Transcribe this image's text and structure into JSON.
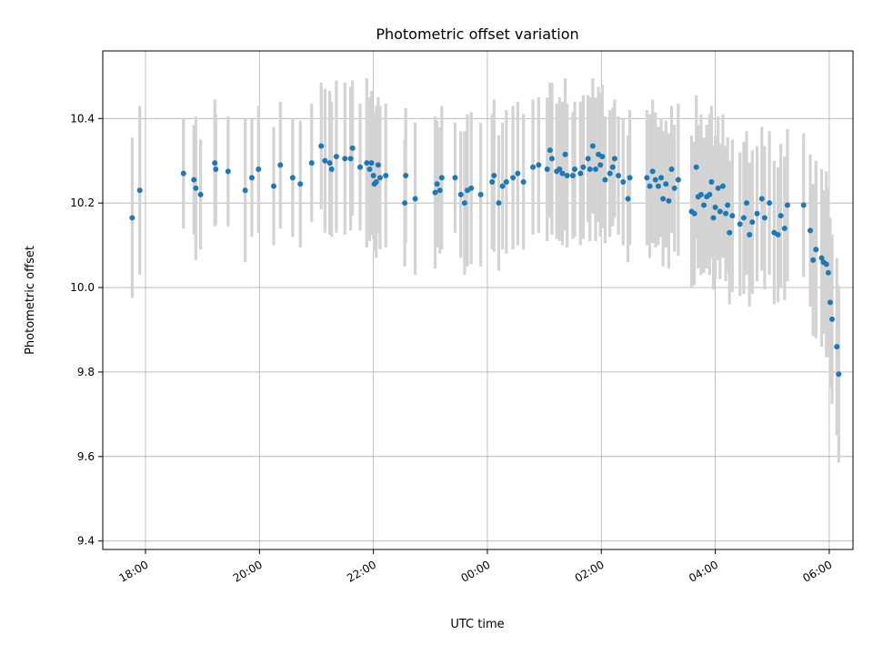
{
  "chart_data": {
    "type": "scatter",
    "title": "Photometric offset variation",
    "xlabel": "UTC time",
    "ylabel": "Photometric offset",
    "x_unit": "UTC time",
    "x_start_date": "",
    "xlim": [
      "17:15",
      "30:25"
    ],
    "ylim": [
      9.38,
      10.56
    ],
    "xticks": [
      {
        "hour": 18,
        "label": "18:00"
      },
      {
        "hour": 20,
        "label": "20:00"
      },
      {
        "hour": 22,
        "label": "22:00"
      },
      {
        "hour": 24,
        "label": "00:00"
      },
      {
        "hour": 26,
        "label": "02:00"
      },
      {
        "hour": 28,
        "label": "04:00"
      },
      {
        "hour": 30,
        "label": "06:00"
      }
    ],
    "yticks": [
      9.4,
      9.6,
      9.8,
      10.0,
      10.2,
      10.4
    ],
    "grid": true,
    "marker_color": "#1f77b4",
    "errorbar_color": "#d3d3d3",
    "series": [
      {
        "name": "",
        "points": [
          [
            "17:46",
            10.165,
            0.19
          ],
          [
            "17:54",
            10.23,
            0.2
          ],
          [
            "18:40",
            10.27,
            0.13
          ],
          [
            "18:51",
            10.255,
            0.13
          ],
          [
            "18:53",
            10.235,
            0.17
          ],
          [
            "18:58",
            10.22,
            0.13
          ],
          [
            "19:13",
            10.295,
            0.15
          ],
          [
            "19:14",
            10.28,
            0.13
          ],
          [
            "19:27",
            10.275,
            0.13
          ],
          [
            "19:45",
            10.23,
            0.17
          ],
          [
            "19:52",
            10.26,
            0.14
          ],
          [
            "19:59",
            10.28,
            0.15
          ],
          [
            "20:15",
            10.24,
            0.14
          ],
          [
            "20:22",
            10.29,
            0.15
          ],
          [
            "20:35",
            10.26,
            0.14
          ],
          [
            "20:43",
            10.245,
            0.15
          ],
          [
            "20:55",
            10.295,
            0.14
          ],
          [
            "21:05",
            10.335,
            0.15
          ],
          [
            "21:09",
            10.3,
            0.17
          ],
          [
            "21:14",
            10.295,
            0.17
          ],
          [
            "21:16",
            10.28,
            0.16
          ],
          [
            "21:21",
            10.31,
            0.18
          ],
          [
            "21:30",
            10.305,
            0.18
          ],
          [
            "21:36",
            10.305,
            0.17
          ],
          [
            "21:38",
            10.33,
            0.16
          ],
          [
            "21:46",
            10.285,
            0.15
          ],
          [
            "21:53",
            10.295,
            0.2
          ],
          [
            "21:56",
            10.28,
            0.17
          ],
          [
            "21:58",
            10.295,
            0.17
          ],
          [
            "22:00",
            10.265,
            0.15
          ],
          [
            "22:01",
            10.245,
            0.16
          ],
          [
            "22:03",
            10.25,
            0.18
          ],
          [
            "22:05",
            10.29,
            0.16
          ],
          [
            "22:07",
            10.26,
            0.17
          ],
          [
            "22:13",
            10.265,
            0.17
          ],
          [
            "22:33",
            10.2,
            0.15
          ],
          [
            "22:34",
            10.265,
            0.16
          ],
          [
            "22:44",
            10.21,
            0.18
          ],
          [
            "23:05",
            10.225,
            0.18
          ],
          [
            "23:07",
            10.245,
            0.15
          ],
          [
            "23:10",
            10.23,
            0.15
          ],
          [
            "23:12",
            10.26,
            0.17
          ],
          [
            "23:26",
            10.26,
            0.13
          ],
          [
            "23:32",
            10.22,
            0.15
          ],
          [
            "23:36",
            10.2,
            0.17
          ],
          [
            "23:39",
            10.23,
            0.18
          ],
          [
            "23:43",
            10.235,
            0.18
          ],
          [
            "23:53",
            10.22,
            0.17
          ],
          [
            "24:05",
            10.25,
            0.16
          ],
          [
            "24:07",
            10.265,
            0.18
          ],
          [
            "24:12",
            10.2,
            0.16
          ],
          [
            "24:16",
            10.24,
            0.15
          ],
          [
            "24:20",
            10.25,
            0.17
          ],
          [
            "24:27",
            10.26,
            0.17
          ],
          [
            "24:32",
            10.27,
            0.17
          ],
          [
            "24:38",
            10.25,
            0.16
          ],
          [
            "24:48",
            10.285,
            0.16
          ],
          [
            "24:54",
            10.29,
            0.16
          ],
          [
            "25:03",
            10.28,
            0.17
          ],
          [
            "25:06",
            10.325,
            0.16
          ],
          [
            "25:08",
            10.305,
            0.18
          ],
          [
            "25:13",
            10.275,
            0.16
          ],
          [
            "25:16",
            10.28,
            0.17
          ],
          [
            "25:19",
            10.27,
            0.17
          ],
          [
            "25:22",
            10.315,
            0.18
          ],
          [
            "25:24",
            10.265,
            0.17
          ],
          [
            "25:30",
            10.265,
            0.15
          ],
          [
            "25:32",
            10.28,
            0.16
          ],
          [
            "25:38",
            10.27,
            0.17
          ],
          [
            "25:41",
            10.285,
            0.17
          ],
          [
            "25:46",
            10.305,
            0.15
          ],
          [
            "25:48",
            10.28,
            0.17
          ],
          [
            "25:51",
            10.335,
            0.16
          ],
          [
            "25:54",
            10.28,
            0.17
          ],
          [
            "25:57",
            10.315,
            0.16
          ],
          [
            "25:59",
            10.29,
            0.17
          ],
          [
            "26:01",
            10.31,
            0.17
          ],
          [
            "26:04",
            10.255,
            0.15
          ],
          [
            "26:09",
            10.27,
            0.15
          ],
          [
            "26:12",
            10.285,
            0.14
          ],
          [
            "26:14",
            10.305,
            0.14
          ],
          [
            "26:18",
            10.265,
            0.14
          ],
          [
            "26:23",
            10.25,
            0.15
          ],
          [
            "26:28",
            10.21,
            0.15
          ],
          [
            "26:30",
            10.26,
            0.16
          ],
          [
            "26:48",
            10.26,
            0.16
          ],
          [
            "26:51",
            10.24,
            0.17
          ],
          [
            "26:54",
            10.275,
            0.17
          ],
          [
            "26:57",
            10.255,
            0.16
          ],
          [
            "27:00",
            10.24,
            0.14
          ],
          [
            "27:03",
            10.26,
            0.14
          ],
          [
            "27:05",
            10.21,
            0.16
          ],
          [
            "27:08",
            10.245,
            0.15
          ],
          [
            "27:11",
            10.205,
            0.16
          ],
          [
            "27:14",
            10.28,
            0.15
          ],
          [
            "27:17",
            10.235,
            0.15
          ],
          [
            "27:21",
            10.255,
            0.18
          ],
          [
            "27:35",
            10.18,
            0.18
          ],
          [
            "27:38",
            10.175,
            0.17
          ],
          [
            "27:40",
            10.285,
            0.17
          ],
          [
            "27:42",
            10.215,
            0.17
          ],
          [
            "27:45",
            10.22,
            0.19
          ],
          [
            "27:48",
            10.195,
            0.16
          ],
          [
            "27:51",
            10.215,
            0.17
          ],
          [
            "27:54",
            10.22,
            0.19
          ],
          [
            "27:56",
            10.25,
            0.18
          ],
          [
            "27:58",
            10.165,
            0.17
          ],
          [
            "28:00",
            10.19,
            0.17
          ],
          [
            "28:03",
            10.235,
            0.17
          ],
          [
            "28:05",
            10.18,
            0.16
          ],
          [
            "28:08",
            10.24,
            0.17
          ],
          [
            "28:11",
            10.175,
            0.16
          ],
          [
            "28:13",
            10.195,
            0.16
          ],
          [
            "28:15",
            10.13,
            0.17
          ],
          [
            "28:18",
            10.17,
            0.18
          ],
          [
            "28:26",
            10.15,
            0.17
          ],
          [
            "28:30",
            10.165,
            0.18
          ],
          [
            "28:33",
            10.2,
            0.17
          ],
          [
            "28:36",
            10.125,
            0.17
          ],
          [
            "28:39",
            10.155,
            0.17
          ],
          [
            "28:44",
            10.175,
            0.16
          ],
          [
            "28:49",
            10.21,
            0.17
          ],
          [
            "28:52",
            10.165,
            0.17
          ],
          [
            "28:57",
            10.2,
            0.17
          ],
          [
            "29:02",
            10.13,
            0.17
          ],
          [
            "29:06",
            10.125,
            0.16
          ],
          [
            "29:09",
            10.17,
            0.17
          ],
          [
            "29:13",
            10.14,
            0.17
          ],
          [
            "29:16",
            10.195,
            0.18
          ],
          [
            "29:33",
            10.195,
            0.17
          ],
          [
            "29:40",
            10.135,
            0.18
          ],
          [
            "29:43",
            10.065,
            0.18
          ],
          [
            "29:46",
            10.09,
            0.21
          ],
          [
            "29:52",
            10.07,
            0.21
          ],
          [
            "29:54",
            10.06,
            0.17
          ],
          [
            "29:57",
            10.055,
            0.22
          ],
          [
            "29:59",
            10.035,
            0.2
          ],
          [
            "30:01",
            9.965,
            0.2
          ],
          [
            "30:03",
            9.925,
            0.2
          ],
          [
            "30:08",
            9.86,
            0.21
          ],
          [
            "30:10",
            9.795,
            0.21
          ]
        ]
      }
    ]
  }
}
